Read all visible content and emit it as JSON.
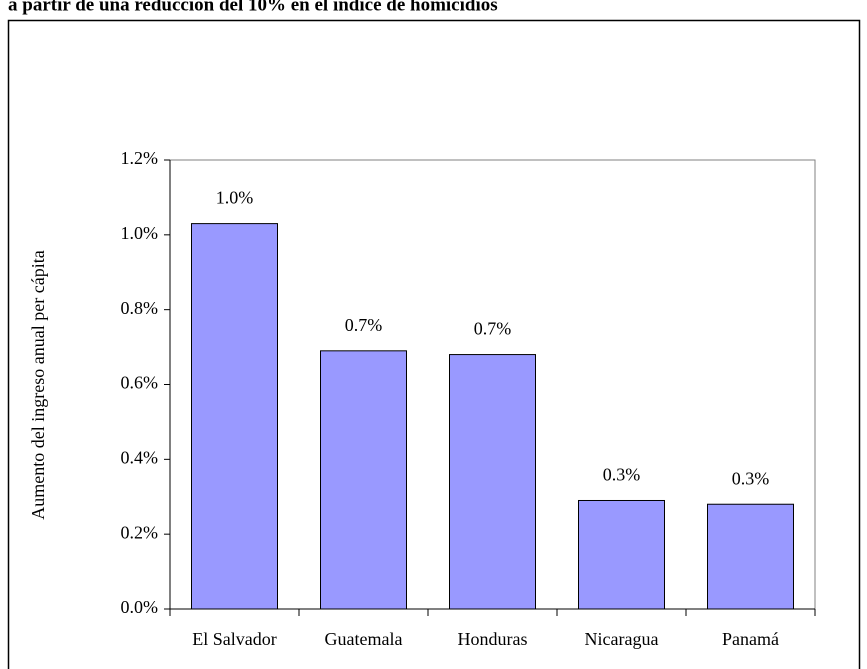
{
  "chart_data": {
    "type": "bar",
    "title": "a partir de una reducción del 10% en el índice de homicidios",
    "ylabel": "Aumento del ingreso anual per cápita",
    "categories": [
      "El Salvador",
      "Guatemala",
      "Honduras",
      "Nicaragua",
      "Panamá"
    ],
    "values": [
      1.03,
      0.69,
      0.68,
      0.29,
      0.28
    ],
    "value_labels": [
      "1.0%",
      "0.7%",
      "0.7%",
      "0.3%",
      "0.3%"
    ],
    "color": "#9999ff",
    "ylim": [
      0,
      1.2
    ],
    "yticks": [
      {
        "value": 0,
        "label": "0.0%"
      },
      {
        "value": 0.2,
        "label": "0.2%"
      },
      {
        "value": 0.4,
        "label": "0.4%"
      },
      {
        "value": 0.6,
        "label": "0.6%"
      },
      {
        "value": 0.8,
        "label": "0.8%"
      },
      {
        "value": 1.0,
        "label": "1.0%"
      },
      {
        "value": 1.2,
        "label": "1.2%"
      }
    ]
  }
}
